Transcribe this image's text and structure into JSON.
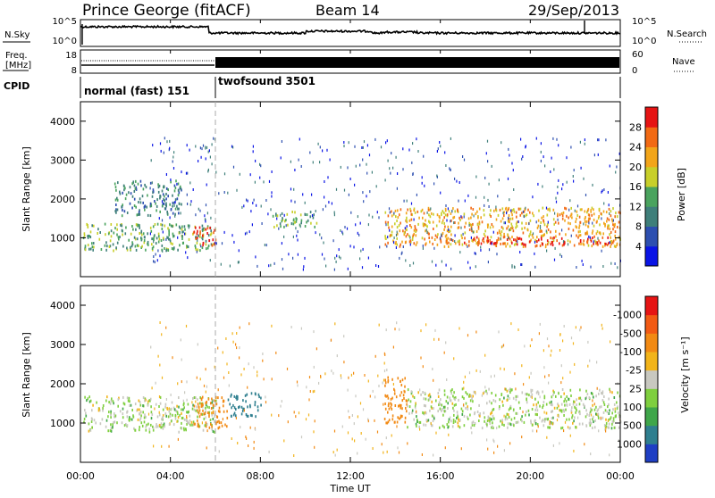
{
  "header": {
    "station": "Prince George (fitACF)",
    "beam": "Beam 14",
    "date": "29/Sep/2013"
  },
  "top_panels": {
    "nsky_label": "N.Sky",
    "nsearch_label": "N.Search",
    "noise_ticks": [
      "10^5",
      "10^0"
    ],
    "freq_label": "Freq.",
    "freq_unit": "[MHz]",
    "freq_ticks": [
      "18",
      "8"
    ],
    "nave_label": "Nave",
    "nave_ticks": [
      "60",
      "0"
    ],
    "cpid_label": "CPID",
    "cpid_segments": [
      {
        "name": "normal (fast) 151",
        "start_hour": 0,
        "end_hour": 6
      },
      {
        "name": "twofsound 3501",
        "start_hour": 6,
        "end_hour": 24
      }
    ]
  },
  "axes": {
    "xlabel": "Time UT",
    "x_ticks": [
      "00:00",
      "04:00",
      "08:00",
      "12:00",
      "16:00",
      "20:00",
      "00:00"
    ],
    "ylabel": "Slant Range [km]",
    "y_ticks": [
      "1000",
      "2000",
      "3000",
      "4000"
    ]
  },
  "colorbars": {
    "power": {
      "label": "Power [dB]",
      "ticks": [
        "4",
        "8",
        "12",
        "16",
        "20",
        "24",
        "28"
      ],
      "colors": [
        "#0a14e6",
        "#2d4fb0",
        "#3f7f7a",
        "#4aa35e",
        "#c8cf2a",
        "#f2a51a",
        "#f26a14",
        "#e61414"
      ]
    },
    "velocity": {
      "label": "Velocity [m s⁻¹]",
      "ticks": [
        "1000",
        "500",
        "100",
        "25",
        "-25",
        "-100",
        "-500",
        "-1000"
      ],
      "colors": [
        "#1f3fc4",
        "#2f7f8f",
        "#3fa64a",
        "#7fcf3f",
        "#c8c8c0",
        "#f2b41a",
        "#f28a14",
        "#f25a14",
        "#e61414"
      ]
    }
  },
  "chart_data": [
    {
      "type": "heatmap",
      "title": "Power",
      "xlabel": "Time UT",
      "ylabel": "Slant Range [km]",
      "xlim": [
        0,
        24
      ],
      "ylim": [
        0,
        4500
      ],
      "colorbar": "Power [dB]",
      "features": [
        {
          "t": [
            0.1,
            6.0
          ],
          "range": [
            700,
            1400
          ],
          "power": 12
        },
        {
          "t": [
            5.0,
            6.0
          ],
          "range": [
            800,
            1300
          ],
          "power": 28
        },
        {
          "t": [
            1.5,
            4.5
          ],
          "range": [
            1600,
            2500
          ],
          "power": 8
        },
        {
          "t": [
            8.5,
            10.5
          ],
          "range": [
            1300,
            1700
          ],
          "power": 12
        },
        {
          "t": [
            13.5,
            24.0
          ],
          "range": [
            800,
            1800
          ],
          "power": 20
        },
        {
          "t": [
            17.0,
            23.5
          ],
          "range": [
            850,
            1050
          ],
          "power": 28
        }
      ]
    },
    {
      "type": "heatmap",
      "title": "Velocity",
      "xlabel": "Time UT",
      "ylabel": "Slant Range [km]",
      "xlim": [
        0,
        24
      ],
      "ylim": [
        0,
        4500
      ],
      "colorbar": "Velocity [m s⁻¹]",
      "features": [
        {
          "t": [
            0.1,
            6.0
          ],
          "range": [
            800,
            1700
          ],
          "velocity": 0
        },
        {
          "t": [
            5.0,
            6.5
          ],
          "range": [
            900,
            1700
          ],
          "velocity": -200
        },
        {
          "t": [
            6.5,
            8.0
          ],
          "range": [
            1200,
            1800
          ],
          "velocity": 200
        },
        {
          "t": [
            13.5,
            14.5
          ],
          "range": [
            1000,
            2200
          ],
          "velocity": -300
        },
        {
          "t": [
            14.5,
            24.0
          ],
          "range": [
            900,
            1900
          ],
          "velocity": 0
        }
      ]
    }
  ]
}
